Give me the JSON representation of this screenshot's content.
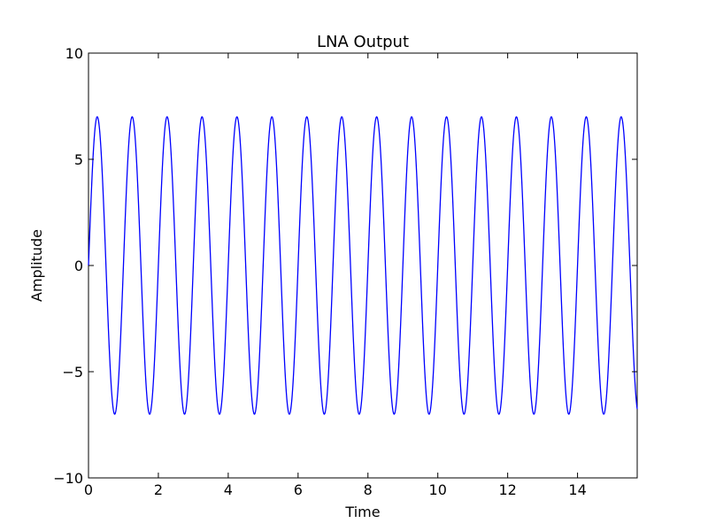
{
  "chart_data": {
    "type": "line",
    "title": "LNA Output",
    "xlabel": "Time",
    "ylabel": "Amplitude",
    "xlim": [
      0,
      15.708
    ],
    "ylim": [
      -10,
      10
    ],
    "xticks": [
      0,
      2,
      4,
      6,
      8,
      10,
      12,
      14
    ],
    "xtick_labels": [
      "0",
      "2",
      "4",
      "6",
      "8",
      "10",
      "12",
      "14"
    ],
    "yticks": [
      -10,
      -5,
      0,
      5,
      10
    ],
    "ytick_labels": [
      "−10",
      "−5",
      "0",
      "5",
      "10"
    ],
    "grid": false,
    "legend": "none",
    "series": [
      {
        "amplitude": 7,
        "period": 1,
        "phase": 0,
        "x_start": 0,
        "x_end": 15.708,
        "color": "#0000ff"
      }
    ]
  }
}
